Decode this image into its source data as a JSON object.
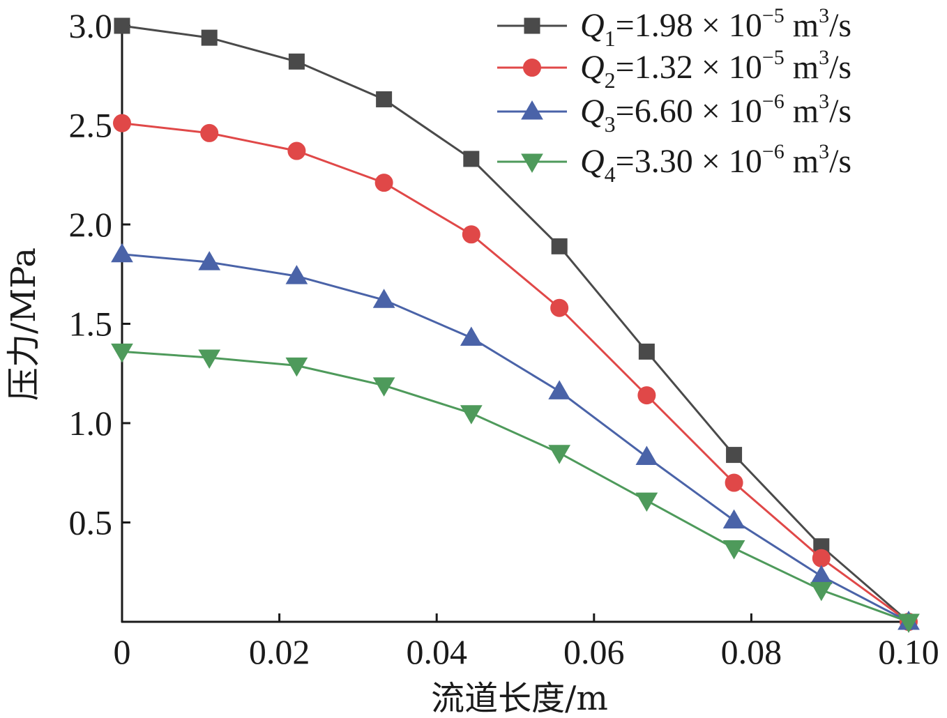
{
  "chart_data": {
    "type": "line",
    "xlabel": "流道长度/m",
    "ylabel": "压力/MPa",
    "xlim": [
      0,
      0.1
    ],
    "ylim": [
      0,
      3.0
    ],
    "xticks": [
      0,
      0.02,
      0.04,
      0.06,
      0.08,
      0.1
    ],
    "xtick_labels": [
      "0",
      "0.02",
      "0.04",
      "0.06",
      "0.08",
      "0.10"
    ],
    "yticks": [
      0.5,
      1.0,
      1.5,
      2.0,
      2.5,
      3.0
    ],
    "ytick_labels": [
      "0.5",
      "1.0",
      "1.5",
      "2.0",
      "2.5",
      "3.0"
    ],
    "grid": false,
    "legend_position": "top-right",
    "x": [
      0,
      0.0111,
      0.0222,
      0.0333,
      0.0444,
      0.0556,
      0.0667,
      0.0778,
      0.0889,
      0.1
    ],
    "series": [
      {
        "name": "Q1=1.98 × 10⁻⁵ m³/s",
        "legend": {
          "var": "Q",
          "sub": "1",
          "eq": "=1.98 × 10",
          "exp": "−5",
          "unit": " m",
          "unitexp": "3",
          "unittail": "/s"
        },
        "color": "#4a4a4a",
        "marker": "square",
        "values": [
          3.0,
          2.94,
          2.82,
          2.63,
          2.33,
          1.89,
          1.36,
          0.84,
          0.38,
          0.0
        ]
      },
      {
        "name": "Q2=1.32 × 10⁻⁵ m³/s",
        "legend": {
          "var": "Q",
          "sub": "2",
          "eq": "=1.32 × 10",
          "exp": "−5",
          "unit": "  m",
          "unitexp": "3",
          "unittail": "/s"
        },
        "color": "#e04848",
        "marker": "circle",
        "values": [
          2.51,
          2.46,
          2.37,
          2.21,
          1.95,
          1.58,
          1.14,
          0.7,
          0.32,
          0.0
        ]
      },
      {
        "name": "Q3=6.60 × 10⁻⁶ m³/s",
        "legend": {
          "var": "Q",
          "sub": "3",
          "eq": "=6.60 × 10",
          "exp": "−6",
          "unit": "  m",
          "unitexp": "3",
          "unittail": "/s"
        },
        "color": "#4a63a8",
        "marker": "triangle-up",
        "values": [
          1.85,
          1.81,
          1.74,
          1.62,
          1.43,
          1.16,
          0.83,
          0.51,
          0.23,
          0.0
        ]
      },
      {
        "name": "Q4=3.30 × 10⁻⁶ m³/s",
        "legend": {
          "var": "Q",
          "sub": "4",
          "eq": "=3.30 × 10",
          "exp": "−6",
          "unit": "  m",
          "unitexp": "3",
          "unittail": "/s"
        },
        "color": "#4e9a5b",
        "marker": "triangle-down",
        "values": [
          1.36,
          1.33,
          1.29,
          1.19,
          1.05,
          0.85,
          0.61,
          0.37,
          0.16,
          0.0
        ]
      }
    ]
  }
}
